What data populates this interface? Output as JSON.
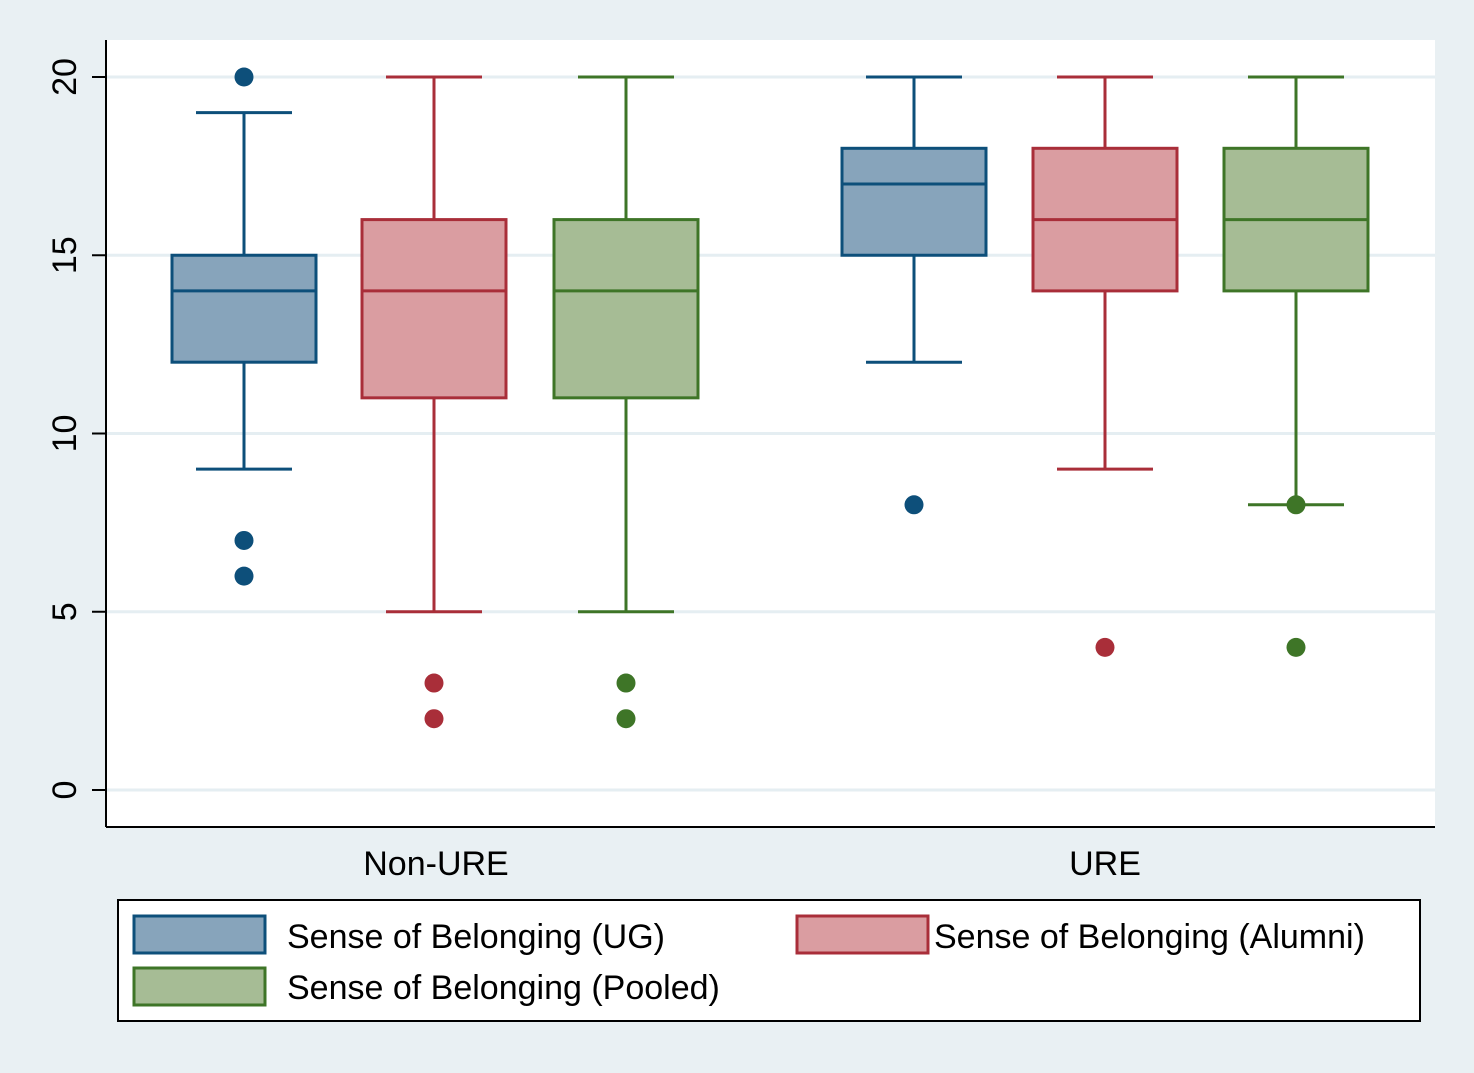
{
  "chart_data": {
    "type": "boxplot",
    "title": "",
    "xlabel": "",
    "ylabel": "",
    "ylim": [
      -1,
      21
    ],
    "yticks": [
      "0",
      "5",
      "10",
      "15",
      "20"
    ],
    "grid": true,
    "legend_position": "bottom",
    "categories": [
      "Non-URE",
      "URE"
    ],
    "series": [
      {
        "name": "Sense of Belonging (UG)",
        "fill": "#87a4bb",
        "stroke": "#0d4f7a",
        "boxes": [
          {
            "category": "Non-URE",
            "whisker_low": 9,
            "q1": 12,
            "median": 14,
            "q3": 15,
            "whisker_high": 19,
            "outliers": [
              20,
              7,
              6
            ]
          },
          {
            "category": "URE",
            "whisker_low": 12,
            "q1": 15,
            "median": 17,
            "q3": 18,
            "whisker_high": 20,
            "outliers": [
              8
            ]
          }
        ]
      },
      {
        "name": "Sense of Belonging (Alumni)",
        "fill": "#da9da1",
        "stroke": "#a92e39",
        "boxes": [
          {
            "category": "Non-URE",
            "whisker_low": 5,
            "q1": 11,
            "median": 14,
            "q3": 16,
            "whisker_high": 20,
            "outliers": [
              3,
              2
            ]
          },
          {
            "category": "URE",
            "whisker_low": 9,
            "q1": 14,
            "median": 16,
            "q3": 18,
            "whisker_high": 20,
            "outliers": [
              4
            ]
          }
        ]
      },
      {
        "name": "Sense of Belonging (Pooled)",
        "fill": "#a6bc95",
        "stroke": "#3e7527",
        "boxes": [
          {
            "category": "Non-URE",
            "whisker_low": 5,
            "q1": 11,
            "median": 14,
            "q3": 16,
            "whisker_high": 20,
            "outliers": [
              3,
              2
            ]
          },
          {
            "category": "URE",
            "whisker_low": 8,
            "q1": 14,
            "median": 16,
            "q3": 18,
            "whisker_high": 20,
            "outliers": [
              8,
              4
            ]
          }
        ]
      }
    ]
  },
  "colors": {
    "page_background": "#e9f0f3",
    "plot_background": "#ffffff",
    "gridline": "#e5eef2"
  }
}
